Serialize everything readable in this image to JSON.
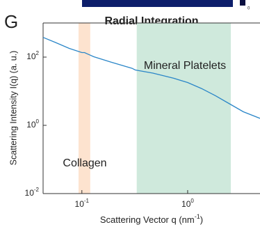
{
  "chart_data": {
    "type": "line",
    "panel": "G",
    "title": "Radial Integration",
    "inset_colorbar_label": "0",
    "xlabel": [
      "Scattering Vector q (nm",
      "-1",
      ")"
    ],
    "ylabel": "Scattering Intensity I(q) (a. u.)",
    "xscale": "log",
    "yscale": "log",
    "xlim": [
      0.043,
      4.83
    ],
    "ylim": [
      0.01,
      1000
    ],
    "xticks": [
      {
        "value": 0.1,
        "label": "10",
        "exponent": "-1"
      },
      {
        "value": 1,
        "label": "10",
        "exponent": "0"
      }
    ],
    "yticks": [
      {
        "value": 0.01,
        "label": "10",
        "exponent": "-2"
      },
      {
        "value": 1,
        "label": "10",
        "exponent": "0"
      },
      {
        "value": 100,
        "label": "10",
        "exponent": "2"
      }
    ],
    "shaded": [
      {
        "label": "Collagen",
        "x": [
          0.093,
          0.12
        ],
        "color": "#fde3cf"
      },
      {
        "label": "Mineral Platelets",
        "x": [
          0.33,
          2.56
        ],
        "color": "#cfe9dc"
      }
    ],
    "series": [
      {
        "color": "#2a86c8",
        "x": [
          0.043,
          0.056,
          0.076,
          0.1,
          0.106,
          0.129,
          0.189,
          0.298,
          0.32,
          0.469,
          0.738,
          1.0,
          1.35,
          1.83,
          2.48,
          3.36,
          4.83
        ],
        "y": [
          378,
          270,
          180,
          136,
          136,
          103,
          71,
          47,
          42,
          34,
          24,
          18,
          12,
          7.4,
          4.3,
          2.5,
          1.6
        ]
      }
    ]
  }
}
